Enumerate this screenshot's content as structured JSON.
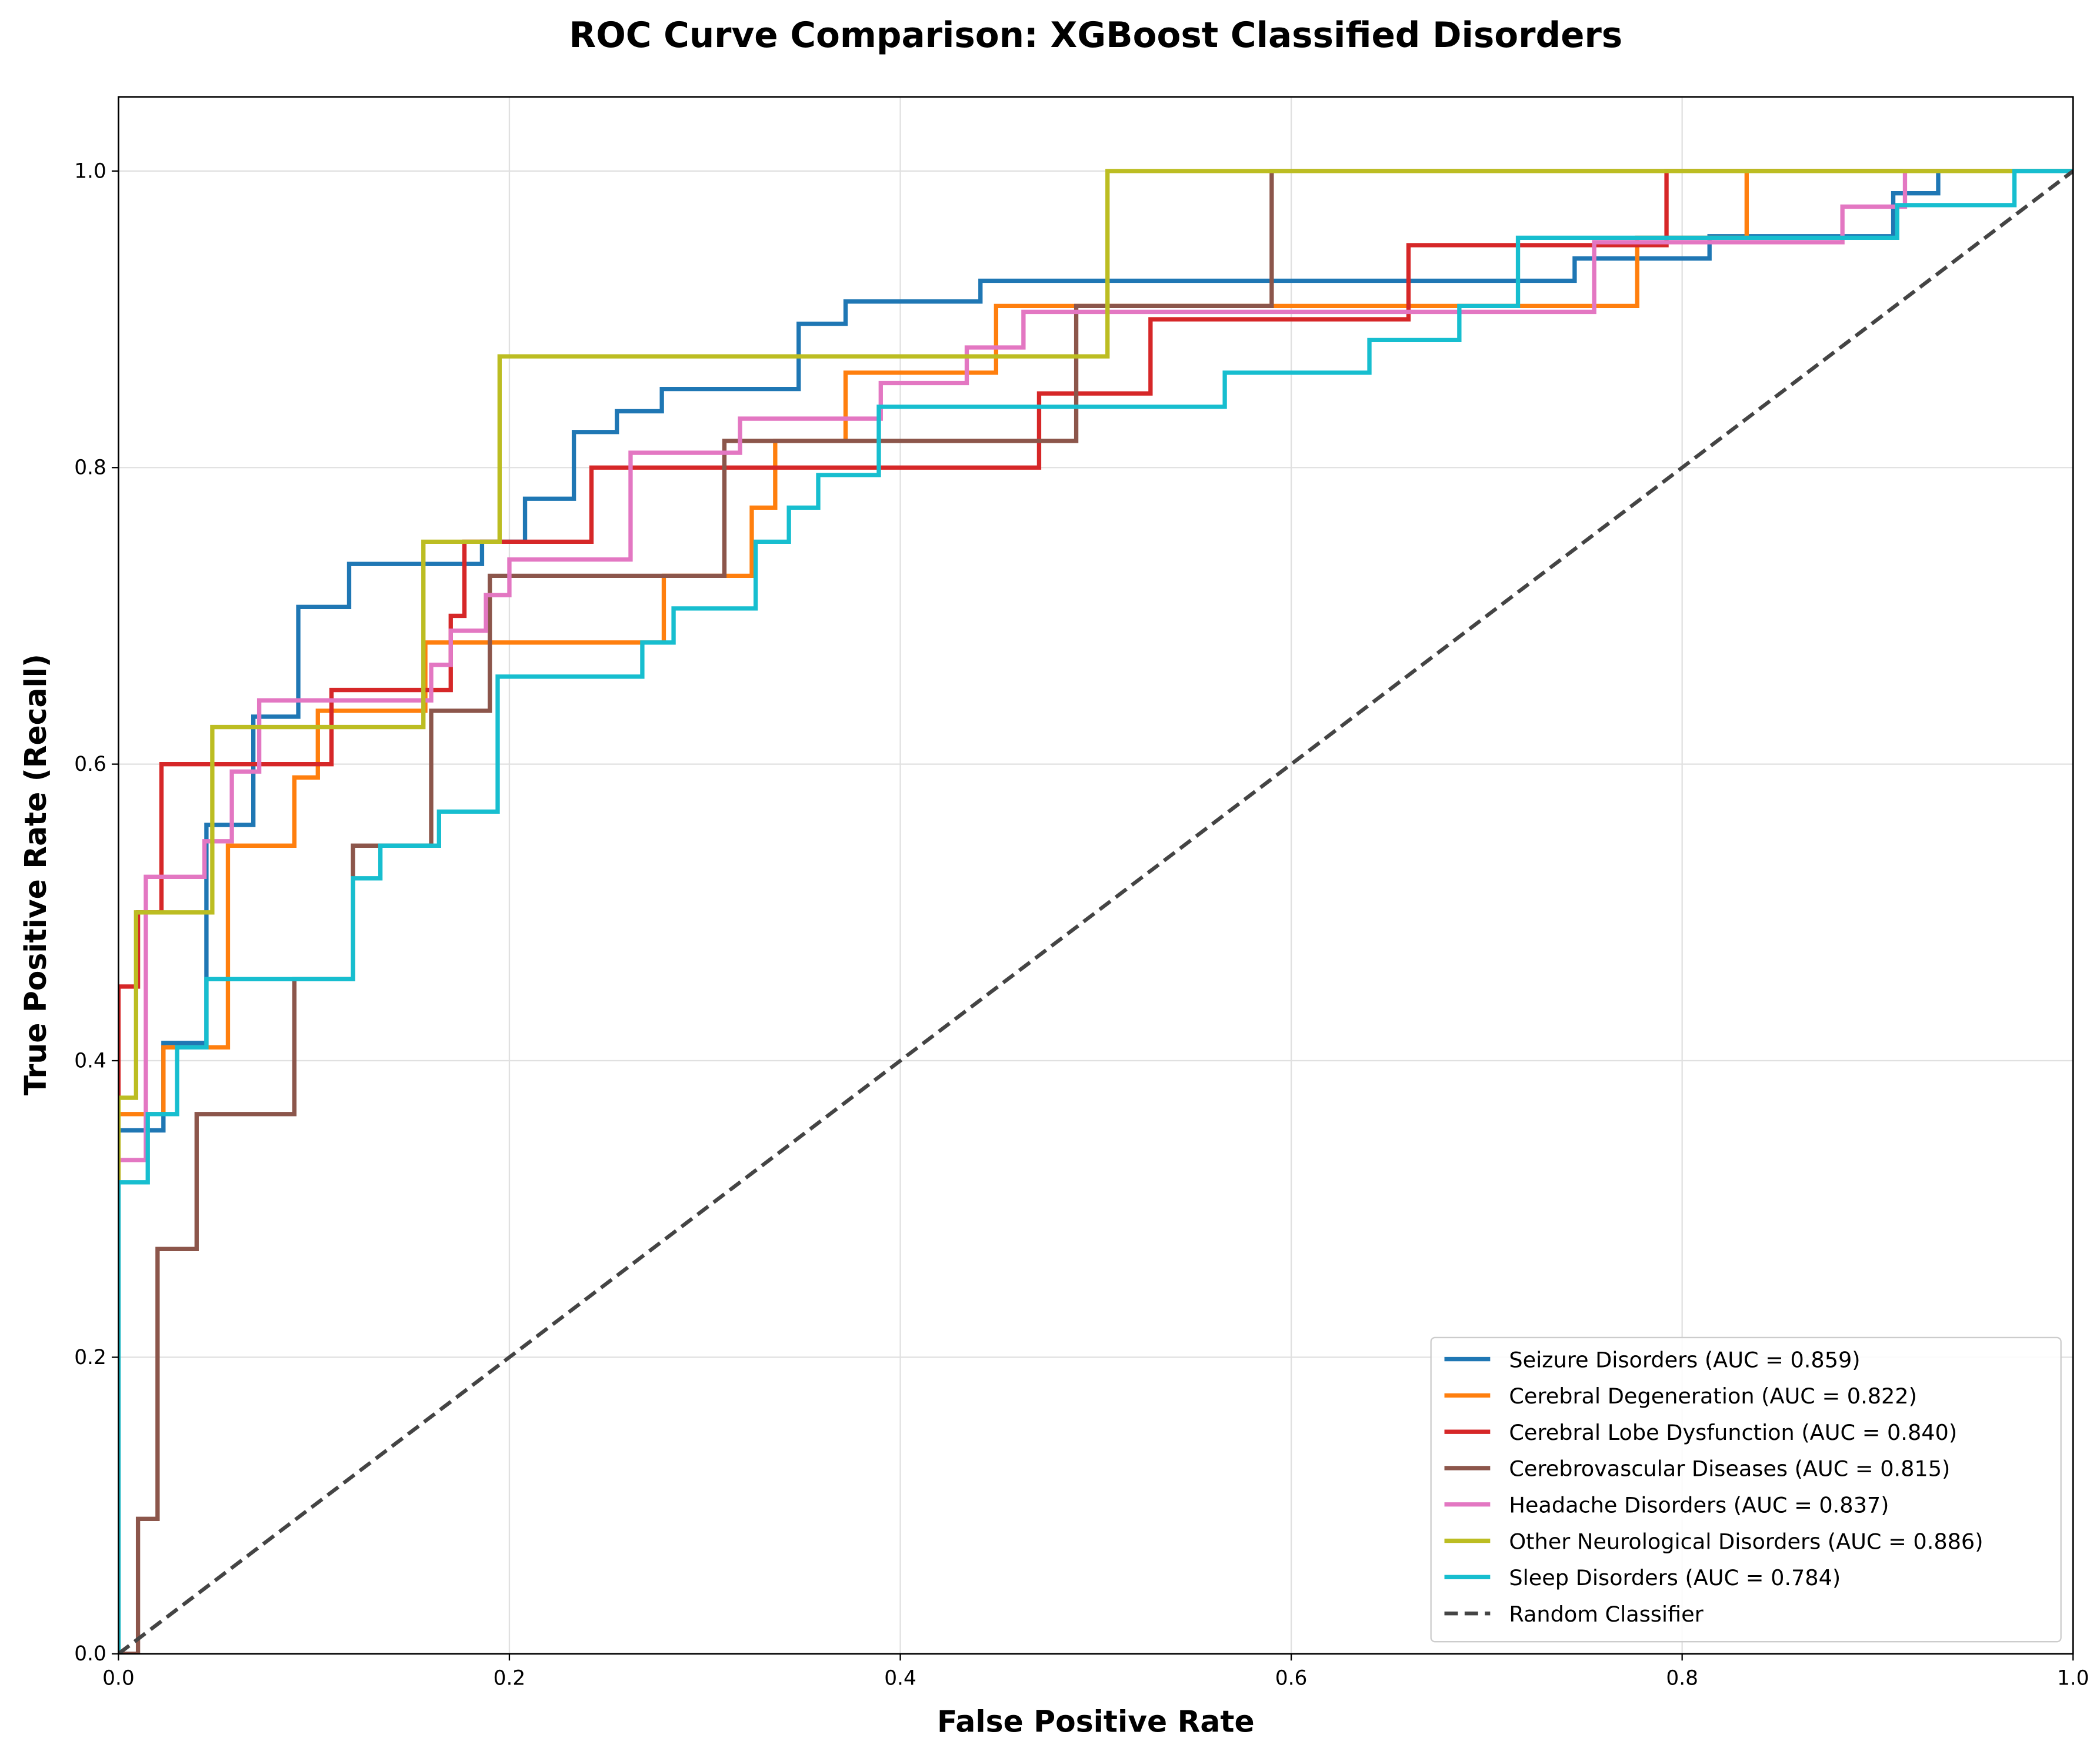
{
  "chart_data": {
    "type": "line",
    "title": "ROC Curve Comparison: XGBoost Classified Disorders",
    "x_label": "False Positive Rate",
    "y_label": "True Positive Rate (Recall)",
    "xlim": [
      0,
      1
    ],
    "ylim": [
      0,
      1.05
    ],
    "xticks": [
      {
        "value": 0,
        "label": "0.0"
      },
      0.2,
      0.4,
      0.6,
      0.8,
      {
        "value": 1,
        "label": "1.0"
      }
    ],
    "yticks": [
      {
        "value": 0,
        "label": "0.0"
      },
      0.2,
      0.4,
      0.6,
      0.8,
      {
        "value": 1,
        "label": "1.0"
      }
    ],
    "grid": true,
    "legend": "lower right",
    "series": [
      {
        "name": "Seizure Disorders (AUC = 0.859)",
        "color": "#1f77b4",
        "x": [
          0,
          0,
          0.023,
          0.023,
          0.045,
          0.045,
          0.069,
          0.069,
          0.092,
          0.092,
          0.118,
          0.118,
          0.186,
          0.186,
          0.208,
          0.208,
          0.233,
          0.233,
          0.255,
          0.255,
          0.278,
          0.278,
          0.348,
          0.348,
          0.372,
          0.372,
          0.441,
          0.441,
          0.745,
          0.745,
          0.814,
          0.814,
          0.908,
          0.908,
          0.931,
          0.931,
          1
        ],
        "values": [
          0,
          0.353,
          0.353,
          0.412,
          0.412,
          0.559,
          0.559,
          0.632,
          0.632,
          0.706,
          0.706,
          0.735,
          0.735,
          0.75,
          0.75,
          0.779,
          0.779,
          0.824,
          0.824,
          0.838,
          0.838,
          0.853,
          0.853,
          0.897,
          0.897,
          0.912,
          0.912,
          0.926,
          0.926,
          0.941,
          0.941,
          0.956,
          0.956,
          0.985,
          0.985,
          1,
          1
        ]
      },
      {
        "name": "Cerebral Degeneration (AUC = 0.822)",
        "color": "#ff7f0e",
        "x": [
          0,
          0,
          0.023,
          0.023,
          0.056,
          0.056,
          0.09,
          0.09,
          0.102,
          0.102,
          0.157,
          0.157,
          0.279,
          0.279,
          0.324,
          0.324,
          0.336,
          0.336,
          0.372,
          0.372,
          0.449,
          0.449,
          0.777,
          0.777,
          0.833,
          0.833,
          1
        ],
        "values": [
          0,
          0.364,
          0.364,
          0.409,
          0.409,
          0.545,
          0.545,
          0.591,
          0.591,
          0.636,
          0.636,
          0.682,
          0.682,
          0.727,
          0.727,
          0.773,
          0.773,
          0.818,
          0.818,
          0.864,
          0.864,
          0.909,
          0.909,
          0.955,
          0.955,
          1,
          1
        ]
      },
      {
        "name": "Cerebral Lobe Dysfunction (AUC = 0.840)",
        "color": "#d62728",
        "x": [
          0,
          0,
          0.01,
          0.01,
          0.022,
          0.022,
          0.109,
          0.109,
          0.17,
          0.17,
          0.177,
          0.177,
          0.242,
          0.242,
          0.471,
          0.471,
          0.528,
          0.528,
          0.66,
          0.66,
          0.792,
          0.792,
          1
        ],
        "values": [
          0,
          0.45,
          0.45,
          0.5,
          0.5,
          0.6,
          0.6,
          0.65,
          0.65,
          0.7,
          0.7,
          0.75,
          0.75,
          0.8,
          0.8,
          0.85,
          0.85,
          0.9,
          0.9,
          0.95,
          0.95,
          1,
          1
        ]
      },
      {
        "name": "Cerebrovascular Diseases (AUC = 0.815)",
        "color": "#8c564b",
        "x": [
          0,
          0.01,
          0.01,
          0.02,
          0.02,
          0.04,
          0.04,
          0.09,
          0.09,
          0.12,
          0.12,
          0.16,
          0.16,
          0.19,
          0.19,
          0.31,
          0.31,
          0.49,
          0.49,
          0.59,
          0.59,
          1
        ],
        "values": [
          0,
          0,
          0.091,
          0.091,
          0.273,
          0.273,
          0.364,
          0.364,
          0.455,
          0.455,
          0.545,
          0.545,
          0.636,
          0.636,
          0.727,
          0.727,
          0.818,
          0.818,
          0.909,
          0.909,
          1,
          1
        ]
      },
      {
        "name": "Headache Disorders (AUC = 0.837)",
        "color": "#e377c2",
        "x": [
          0,
          0,
          0.014,
          0.014,
          0.044,
          0.044,
          0.058,
          0.058,
          0.072,
          0.072,
          0.16,
          0.16,
          0.17,
          0.17,
          0.188,
          0.188,
          0.2,
          0.2,
          0.262,
          0.262,
          0.318,
          0.318,
          0.39,
          0.39,
          0.434,
          0.434,
          0.463,
          0.463,
          0.755,
          0.755,
          0.882,
          0.882,
          0.914,
          0.914,
          1
        ],
        "values": [
          0,
          0.333,
          0.333,
          0.524,
          0.524,
          0.548,
          0.548,
          0.595,
          0.595,
          0.643,
          0.643,
          0.667,
          0.667,
          0.69,
          0.69,
          0.714,
          0.714,
          0.738,
          0.738,
          0.81,
          0.81,
          0.833,
          0.833,
          0.857,
          0.857,
          0.881,
          0.881,
          0.905,
          0.905,
          0.952,
          0.952,
          0.976,
          0.976,
          1,
          1
        ]
      },
      {
        "name": "Other Neurological Disorders (AUC = 0.886)",
        "color": "#bcbd22",
        "x": [
          0,
          0,
          0.009,
          0.009,
          0.048,
          0.048,
          0.156,
          0.156,
          0.195,
          0.195,
          0.506,
          0.506,
          1
        ],
        "values": [
          0,
          0.375,
          0.375,
          0.5,
          0.5,
          0.625,
          0.625,
          0.75,
          0.75,
          0.875,
          0.875,
          1,
          1
        ]
      },
      {
        "name": "Sleep Disorders (AUC = 0.784)",
        "color": "#17becf",
        "x": [
          0,
          0,
          0.015,
          0.015,
          0.03,
          0.03,
          0.045,
          0.045,
          0.12,
          0.12,
          0.134,
          0.134,
          0.164,
          0.164,
          0.194,
          0.194,
          0.268,
          0.268,
          0.284,
          0.284,
          0.326,
          0.326,
          0.343,
          0.343,
          0.358,
          0.358,
          0.389,
          0.389,
          0.566,
          0.566,
          0.64,
          0.64,
          0.686,
          0.686,
          0.716,
          0.716,
          0.91,
          0.91,
          0.97,
          0.97,
          1
        ],
        "values": [
          0,
          0.318,
          0.318,
          0.364,
          0.364,
          0.409,
          0.409,
          0.455,
          0.455,
          0.523,
          0.523,
          0.545,
          0.545,
          0.568,
          0.568,
          0.659,
          0.659,
          0.682,
          0.682,
          0.705,
          0.705,
          0.75,
          0.75,
          0.773,
          0.773,
          0.795,
          0.795,
          0.841,
          0.841,
          0.864,
          0.864,
          0.886,
          0.886,
          0.909,
          0.909,
          0.955,
          0.955,
          0.977,
          0.977,
          1,
          1
        ]
      },
      {
        "name": "Random Classifier",
        "color": "#444444",
        "linestyle": "dashed",
        "x": [
          0,
          1
        ],
        "values": [
          0,
          1
        ]
      }
    ]
  }
}
